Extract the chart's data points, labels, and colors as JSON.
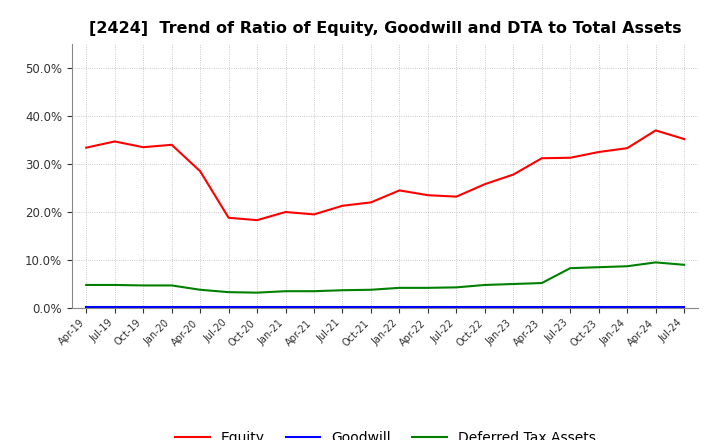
{
  "title": "[2424]  Trend of Ratio of Equity, Goodwill and DTA to Total Assets",
  "title_fontsize": 11.5,
  "background_color": "#ffffff",
  "plot_background_color": "#ffffff",
  "grid_color": "#bbbbbb",
  "ylim": [
    0.0,
    0.55
  ],
  "yticks": [
    0.0,
    0.1,
    0.2,
    0.3,
    0.4,
    0.5
  ],
  "legend_labels": [
    "Equity",
    "Goodwill",
    "Deferred Tax Assets"
  ],
  "x_tick_labels": [
    "Apr-19",
    "Jul-19",
    "Oct-19",
    "Jan-20",
    "Apr-20",
    "Jul-20",
    "Oct-20",
    "Jan-21",
    "Apr-21",
    "Jul-21",
    "Oct-21",
    "Jan-22",
    "Apr-22",
    "Jul-22",
    "Oct-22",
    "Jan-23",
    "Apr-23",
    "Jul-23",
    "Oct-23",
    "Jan-24",
    "Apr-24",
    "Jul-24"
  ],
  "equity": [
    0.334,
    0.347,
    0.335,
    0.34,
    0.285,
    0.188,
    0.183,
    0.2,
    0.195,
    0.213,
    0.22,
    0.245,
    0.235,
    0.232,
    0.258,
    0.278,
    0.312,
    0.313,
    0.325,
    0.333,
    0.37,
    0.352
  ],
  "goodwill": [
    0.003,
    0.003,
    0.003,
    0.003,
    0.003,
    0.003,
    0.003,
    0.003,
    0.003,
    0.003,
    0.003,
    0.003,
    0.003,
    0.003,
    0.003,
    0.003,
    0.003,
    0.003,
    0.003,
    0.003,
    0.003,
    0.003
  ],
  "dta": [
    0.048,
    0.048,
    0.047,
    0.047,
    0.038,
    0.033,
    0.032,
    0.035,
    0.035,
    0.037,
    0.038,
    0.042,
    0.042,
    0.043,
    0.048,
    0.05,
    0.052,
    0.083,
    0.085,
    0.087,
    0.095,
    0.09
  ],
  "equity_color": "#ff0000",
  "goodwill_color": "#0000ff",
  "dta_color": "#008000",
  "line_width": 1.5
}
